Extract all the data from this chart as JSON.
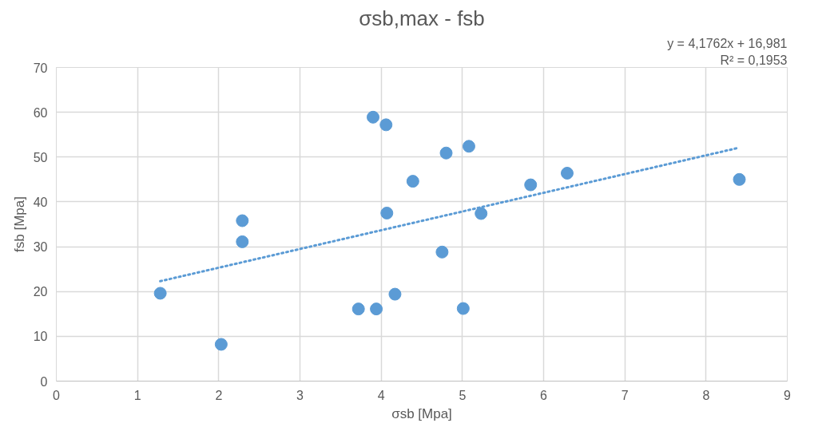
{
  "chart_data": {
    "type": "scatter",
    "title": "σsb,max - fsb",
    "xlabel": "σsb [Mpa]",
    "ylabel": "fsb [Mpa]",
    "xlim": [
      0,
      9
    ],
    "xticks": [
      0,
      1,
      2,
      3,
      4,
      5,
      6,
      7,
      8,
      9
    ],
    "ylim": [
      0,
      70
    ],
    "yticks": [
      0,
      10,
      20,
      30,
      40,
      50,
      60,
      70
    ],
    "grid": true,
    "series": [
      {
        "type": "scatter",
        "marker": "circle",
        "color": "#5b9bd5",
        "x": [
          1.28,
          2.03,
          2.29,
          2.29,
          3.9,
          4.06,
          4.39,
          4.07,
          3.72,
          3.94,
          4.17,
          4.8,
          5.08,
          4.75,
          5.01,
          5.23,
          5.84,
          6.29,
          8.41
        ],
        "values": [
          19.6,
          8.2,
          35.8,
          31.1,
          58.9,
          57.2,
          44.6,
          37.5,
          16.1,
          16.1,
          19.4,
          50.9,
          52.4,
          28.8,
          16.2,
          37.4,
          43.8,
          46.4,
          45.0
        ]
      },
      {
        "type": "line",
        "color": "#5b9bd5",
        "line_style": "dotted",
        "x": [
          1.28,
          8.41
        ],
        "values": [
          22.3,
          52.1
        ]
      }
    ],
    "annotations": [
      "y = 4,1762x + 16,981",
      "R² = 0,1953"
    ]
  }
}
